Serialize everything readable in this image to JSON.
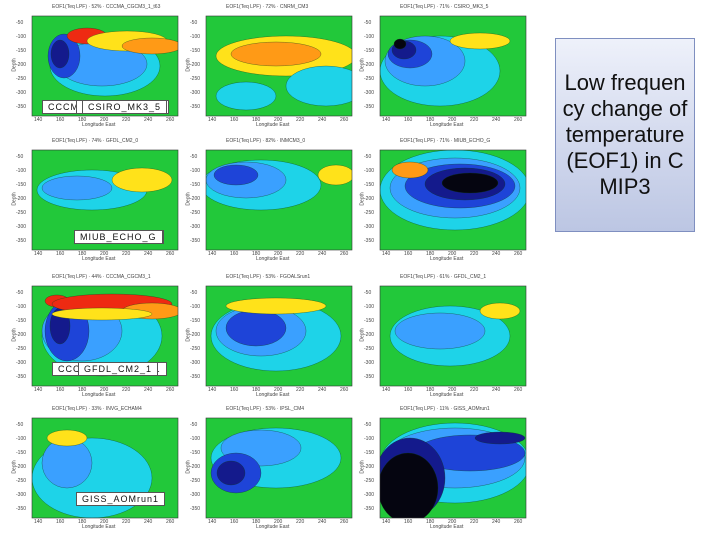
{
  "side_title": "Low frequency change of temperature (EOF1) in CMIP3",
  "panels": [
    {
      "model": "CCCMA_CGCM3_1_t63",
      "header": "EOF1(Teq LPF) · 52% · CCCMA_CGCM3_1_t63"
    },
    {
      "model": "CNRM_CM3",
      "header": "EOF1(Teq LPF) · 72% · CNRM_CM3"
    },
    {
      "model": "CSIRO_MK3_5",
      "header": "EOF1(Teq LPF) · 71% · CSIRO_MK3_5"
    },
    {
      "model": "GFDL_CM2_0",
      "header": "EOF1(Teq LPF) · 74% · GFDL_CM2_0"
    },
    {
      "model": "INMCM3_0",
      "header": "EOF1(Teq LPF) · 82% · INMCM3_0"
    },
    {
      "model": "MIUB_ECHO_G",
      "header": "EOF1(Teq LPF) · 71% · MIUB_ECHO_G"
    },
    {
      "model": "CCCMA_CGCM3_1",
      "header": "EOF1(Teq LPF) · 44% · CCCMA_CGCM3_1"
    },
    {
      "model": "FGOALSrun1",
      "header": "EOF1(Teq LPF) · 53% · FGOALSrun1"
    },
    {
      "model": "GFDL_CM2_1",
      "header": "EOF1(Teq LPF) · 61% · GFDL_CM2_1"
    },
    {
      "model": "INVG_ECHAM4",
      "header": "EOF1(Teq LPF) · 33% · INVG_ECHAM4"
    },
    {
      "model": "IPSL_CM4",
      "header": "EOF1(Teq LPF) · 53% · IPSL_CM4"
    },
    {
      "model": "GISS_AOMrun1",
      "header": "EOF1(Teq LPF) · 11% · GISS_AOMrun1"
    }
  ],
  "axes": {
    "xlabel": "Longitude East",
    "ylabel": "Depth",
    "xticks": [
      "140",
      "160",
      "180",
      "200",
      "220",
      "240",
      "260"
    ],
    "yticks": [
      "-50",
      "-100",
      "-150",
      "-200",
      "-250",
      "-300",
      "-350"
    ]
  },
  "colors": {
    "green": "#22c83a",
    "cyan": "#1ed3e8",
    "lightblue": "#3aa0ff",
    "blue": "#1e44d8",
    "navy": "#141a8c",
    "black": "#050510",
    "yellow": "#ffe21a",
    "orange": "#ff9a16",
    "red": "#ee2a12"
  }
}
